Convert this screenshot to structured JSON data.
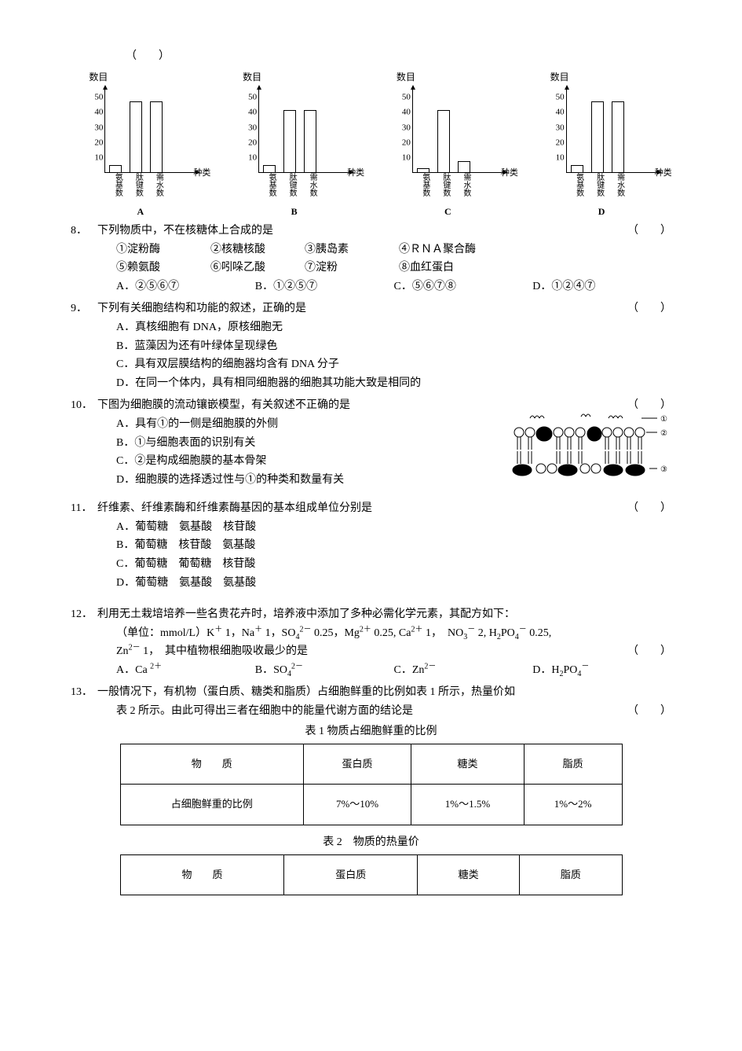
{
  "header_blank": "（　　）",
  "charts": {
    "ylabel": "数目",
    "yticks": [
      10,
      20,
      30,
      40,
      50
    ],
    "ymax": 55,
    "xlabels": [
      "氨基数",
      "肽键数",
      "需水数"
    ],
    "xunit": "种类",
    "items": [
      {
        "label": "A",
        "values": [
          5,
          48,
          48
        ]
      },
      {
        "label": "B",
        "values": [
          5,
          42,
          42
        ]
      },
      {
        "label": "C",
        "values": [
          3,
          42,
          8
        ]
      },
      {
        "label": "D",
        "values": [
          5,
          48,
          48
        ]
      }
    ]
  },
  "q8": {
    "num": "8．",
    "stem": "下列物质中，不在核糖体上合成的是",
    "blank": "（　　）",
    "items_row1": [
      "①淀粉酶",
      "②核糖核酸",
      "③胰岛素",
      "④ＲＮＡ聚合酶"
    ],
    "items_row2": [
      "⑤赖氨酸",
      "⑥吲哚乙酸",
      "⑦淀粉",
      "⑧血红蛋白"
    ],
    "opts": {
      "A": "A．②⑤⑥⑦",
      "B": "B．①②⑤⑦",
      "C": "C．⑤⑥⑦⑧",
      "D": "D．①②④⑦"
    }
  },
  "q9": {
    "num": "9．",
    "stem": "下列有关细胞结构和功能的叙述，正确的是",
    "blank": "（　　）",
    "A": "A．真核细胞有 DNA，原核细胞无",
    "B": "B．蓝藻因为还有叶绿体呈现绿色",
    "C": "C．具有双层膜结构的细胞器均含有 DNA 分子",
    "D": "D．在同一个体内，具有相同细胞器的细胞其功能大致是相同的"
  },
  "q10": {
    "num": "10．",
    "stem": "下图为细胞膜的流动镶嵌模型，有关叙述不正确的是",
    "blank": "（　　）",
    "A": "A．具有①的一侧是细胞膜的外侧",
    "B": "B．①与细胞表面的识别有关",
    "C": "C．②是构成细胞膜的基本骨架",
    "D": "D．细胞膜的选择透过性与①的种类和数量有关"
  },
  "q11": {
    "num": "11．",
    "stem": "纤维素、纤维素酶和纤维素酶基因的基本组成单位分别是",
    "blank": "（　　）",
    "A": "A．葡萄糖　氨基酸　核苷酸",
    "B": "B．葡萄糖　核苷酸　氨基酸",
    "C": "C．葡萄糖　葡萄糖　核苷酸",
    "D": "D．葡萄糖　氨基酸　氨基酸"
  },
  "q12": {
    "num": "12．",
    "stem1": "利用无土栽培培养一些名贵花卉时，培养液中添加了多种必需化学元素，其配方如下：",
    "stem2_pre": "（单位：mmol/L）K",
    "stem3_pre": "Zn",
    "stem3_post": " 1，　其中植物根细胞吸收最少的是",
    "blank": "（　　）",
    "opts": {
      "A": "A．Ca ",
      "B": "B．SO",
      "C": "C．Zn",
      "D": "D．H"
    }
  },
  "q13": {
    "num": "13．",
    "stem1": "一般情况下，有机物（蛋白质、糖类和脂质）占细胞鲜重的比例如表 1 所示，热量价如",
    "stem2": "表 2 所示。由此可得出三者在细胞中的能量代谢方面的结论是",
    "blank": "（　　）"
  },
  "table1": {
    "title": "表 1 物质占细胞鲜重的比例",
    "cols": [
      "物　　质",
      "蛋白质",
      "糖类",
      "脂质"
    ],
    "row_label": "占细胞鲜重的比例",
    "vals": [
      "7%～10%",
      "1%～1.5%",
      "1%～2%"
    ]
  },
  "table2": {
    "title": "表 2　物质的热量价",
    "cols": [
      "物　　质",
      "蛋白质",
      "糖类",
      "脂质"
    ]
  }
}
